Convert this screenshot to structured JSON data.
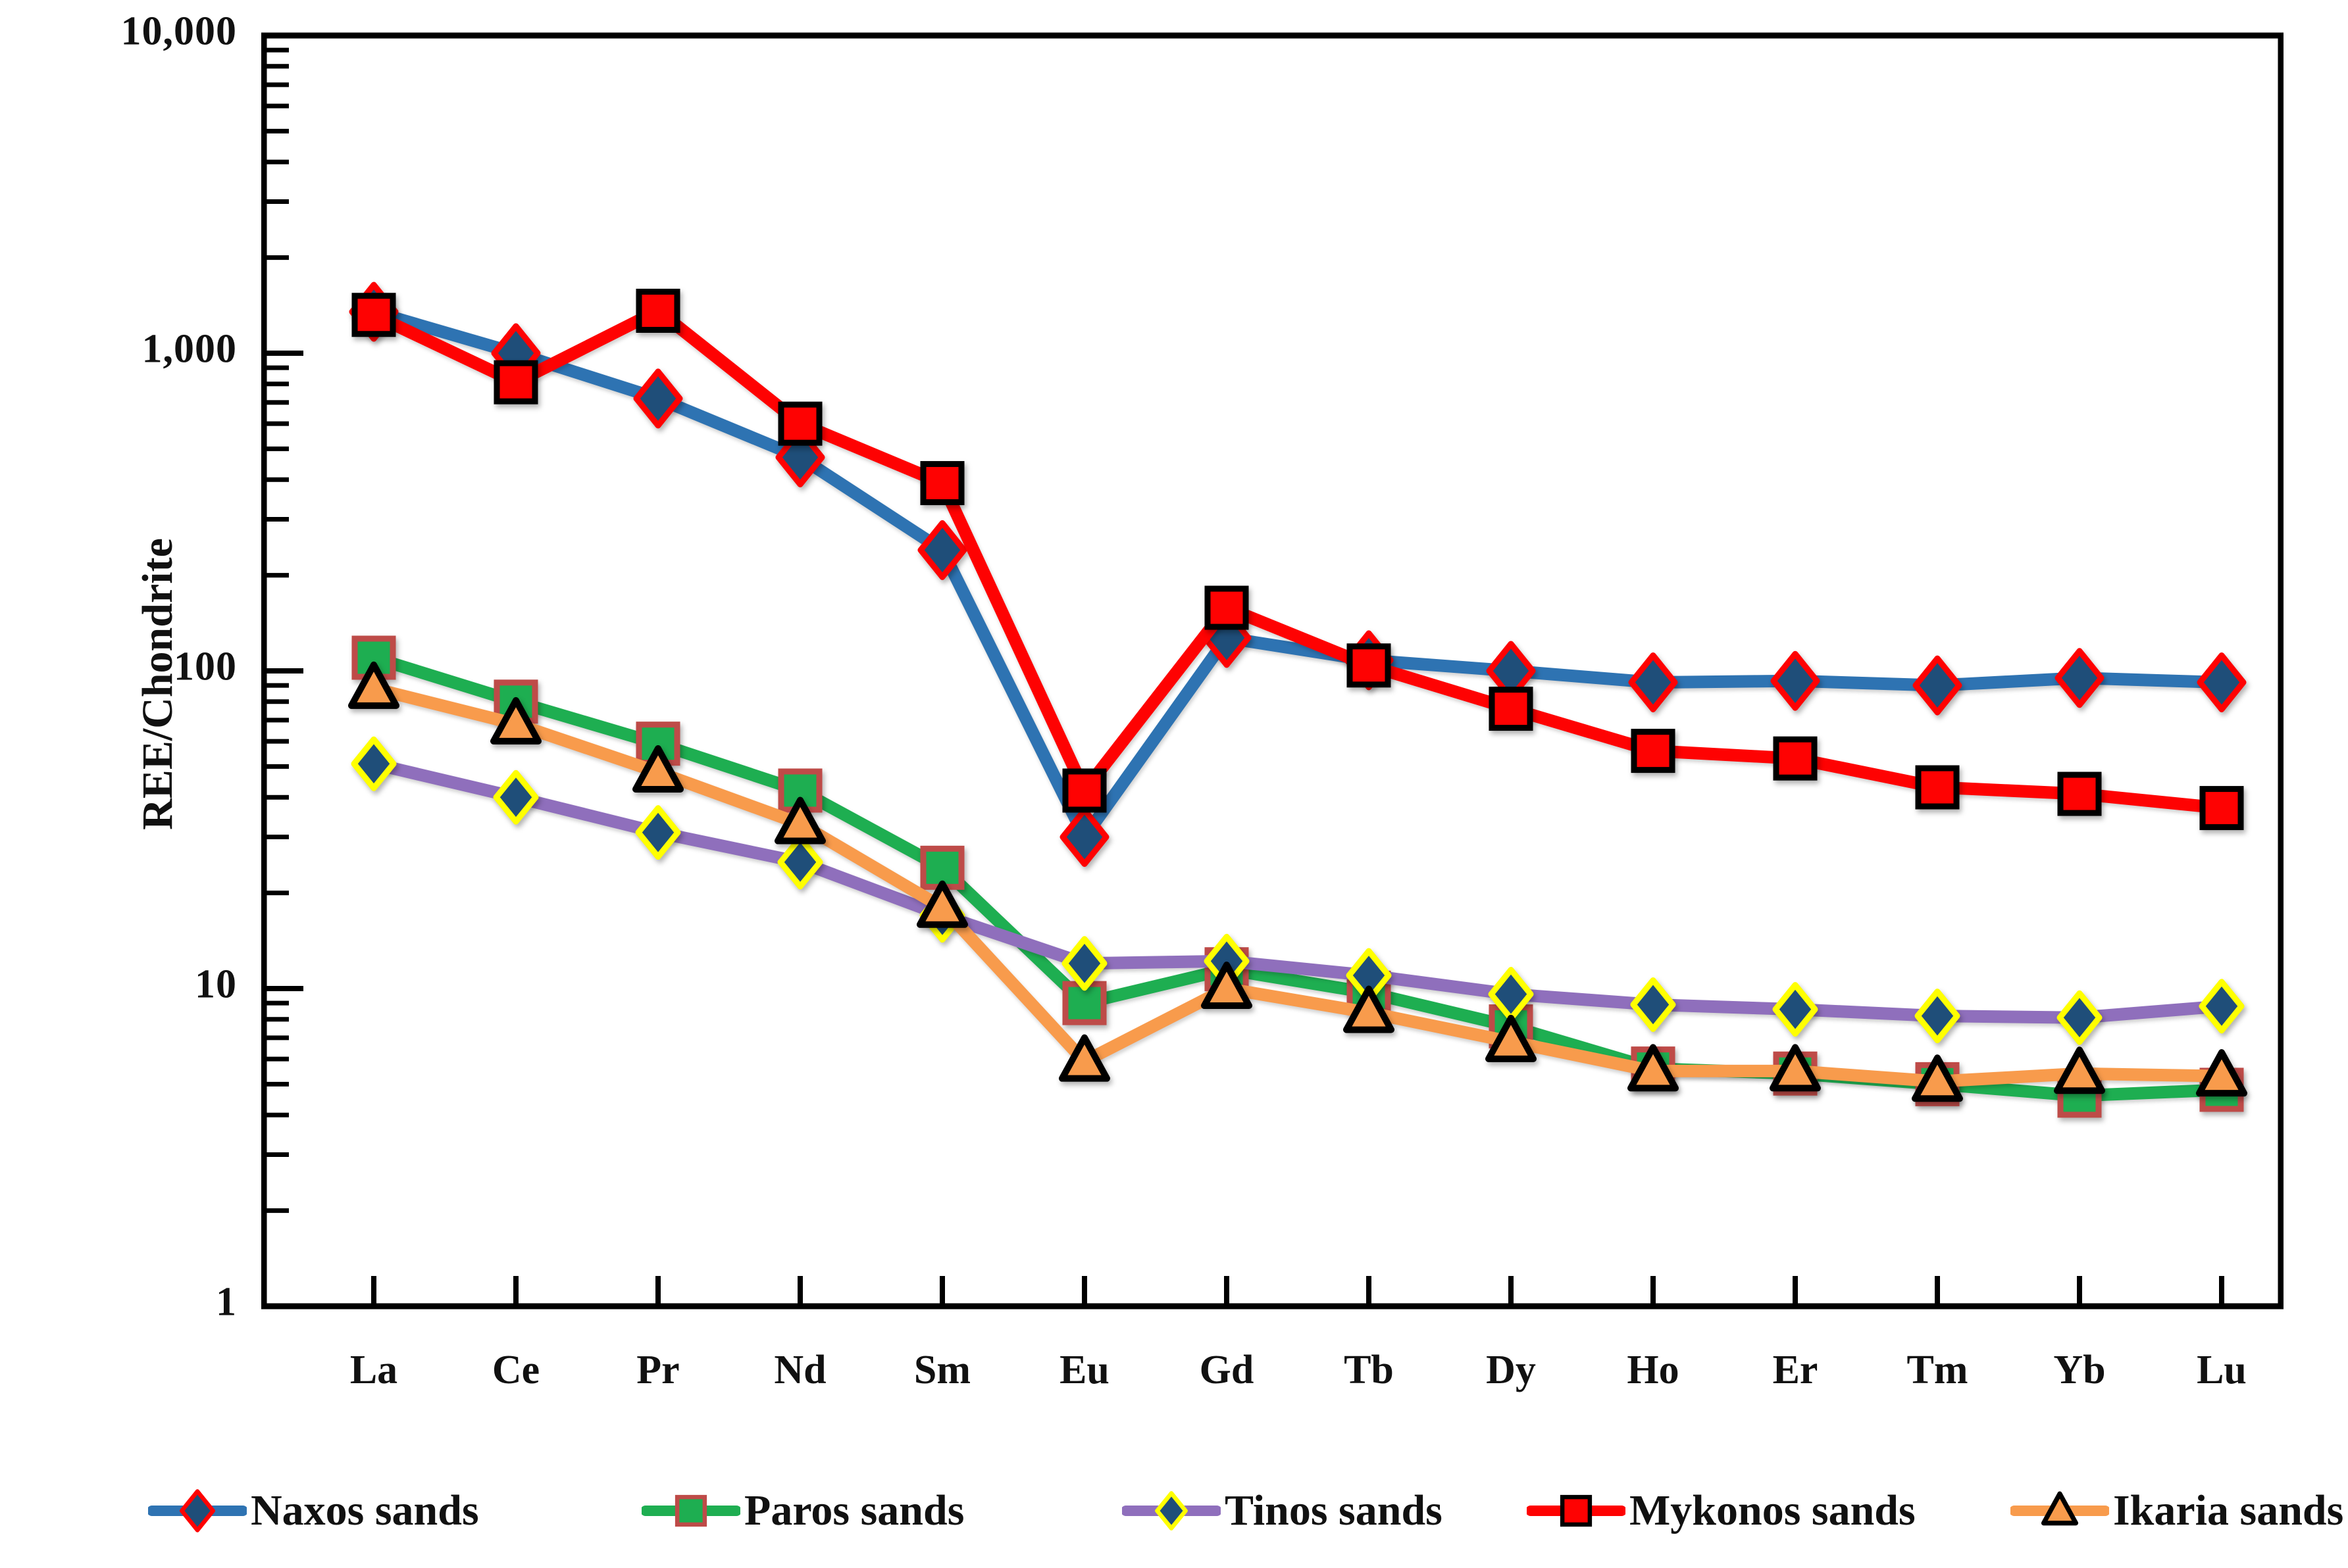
{
  "figure": {
    "y_axis_title": "REE/Chondrite",
    "y_tick_labels": [
      "10,000",
      "1,000",
      "100",
      "10",
      "1"
    ],
    "colors": {
      "axis": "#000000",
      "background": "#ffffff",
      "naxos_line": "#2E73B2",
      "naxos_marker_fill": "#1F4E79",
      "naxos_marker_edge": "#FE0202",
      "paros_line": "#1EAE51",
      "paros_marker_edge": "#BE4B48",
      "tinos_line": "#8F6FBC",
      "tinos_marker_fill": "#1F4E79",
      "tinos_marker_edge": "#FFFF00",
      "mykonos_line": "#FE0202",
      "mykonos_marker_edge": "#000000",
      "ikaria_line": "#F89B4C",
      "ikaria_marker_edge": "#000000"
    }
  },
  "chart_data": {
    "type": "line",
    "x_categories": [
      "La",
      "Ce",
      "Pr",
      "Nd",
      "Sm",
      "Eu",
      "Gd",
      "Tb",
      "Dy",
      "Ho",
      "Er",
      "Tm",
      "Yb",
      "Lu"
    ],
    "ylabel": "REE/Chondrite",
    "yscale": "log",
    "ylim": [
      1,
      10000
    ],
    "y_major_ticks": [
      1,
      10,
      100,
      1000,
      10000
    ],
    "grid": "off",
    "legend_position": "bottom",
    "series": [
      {
        "name": "Naxos sands",
        "marker": "diamond",
        "line_color": "#2E73B2",
        "marker_fill": "#1F4E79",
        "marker_edge": "#FE0202",
        "values": [
          1350,
          1000,
          720,
          470,
          240,
          30,
          127,
          108,
          100,
          92,
          93,
          90,
          95,
          92
        ]
      },
      {
        "name": "Paros sands",
        "marker": "square",
        "line_color": "#1EAE51",
        "marker_fill": "#1EAE51",
        "marker_edge": "#BE4B48",
        "values": [
          110,
          80,
          59,
          42,
          24,
          9,
          11.5,
          9.7,
          7.6,
          5.6,
          5.4,
          5.0,
          4.6,
          4.8
        ]
      },
      {
        "name": "Tinos sands",
        "marker": "diamond",
        "line_color": "#8F6FBC",
        "marker_fill": "#1F4E79",
        "marker_edge": "#FFFF00",
        "values": [
          51,
          40,
          31,
          25,
          17,
          12,
          12.2,
          11,
          9.6,
          8.9,
          8.6,
          8.2,
          8.1,
          8.8
        ]
      },
      {
        "name": "Mykonos sands",
        "marker": "square",
        "line_color": "#FE0202",
        "marker_fill": "#FE0202",
        "marker_edge": "#000000",
        "values": [
          1320,
          810,
          1360,
          600,
          390,
          42,
          158,
          104,
          76,
          56,
          53,
          43,
          41,
          37
        ]
      },
      {
        "name": "Ikaria sands",
        "marker": "triangle",
        "line_color": "#F89B4C",
        "marker_fill": "#F89B4C",
        "marker_edge": "#000000",
        "values": [
          88,
          68,
          48,
          33,
          18,
          5.9,
          10,
          8.4,
          6.8,
          5.5,
          5.5,
          5.1,
          5.4,
          5.3
        ]
      }
    ]
  }
}
